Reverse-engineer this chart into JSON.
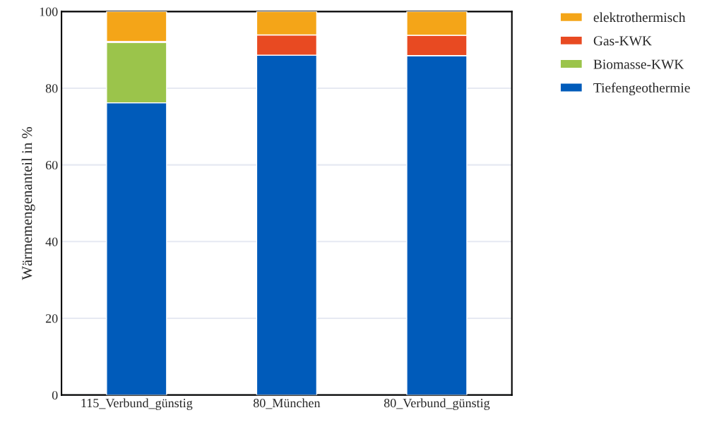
{
  "chart_data": {
    "type": "bar",
    "stacked": true,
    "ylabel": "Wärmemengenanteil in %",
    "categories": [
      "115_Verbund_günstig",
      "80_München",
      "80_Verbund_günstig"
    ],
    "series": [
      {
        "name": "Tiefengeothermie",
        "color": "#005bba",
        "values": [
          76.2,
          88.6,
          88.5
        ]
      },
      {
        "name": "Biomasse-KWK",
        "color": "#9bc44b",
        "values": [
          15.7,
          0,
          0
        ]
      },
      {
        "name": "Gas-KWK",
        "color": "#e84a22",
        "values": [
          0.3,
          5.3,
          5.3
        ]
      },
      {
        "name": "elektrothermisch",
        "color": "#f4a518",
        "values": [
          7.8,
          6.1,
          6.2
        ]
      }
    ],
    "ylim": [
      0,
      100
    ],
    "yticks": [
      0,
      20,
      40,
      60,
      80,
      100
    ],
    "grid": "y",
    "legend": "top right"
  }
}
